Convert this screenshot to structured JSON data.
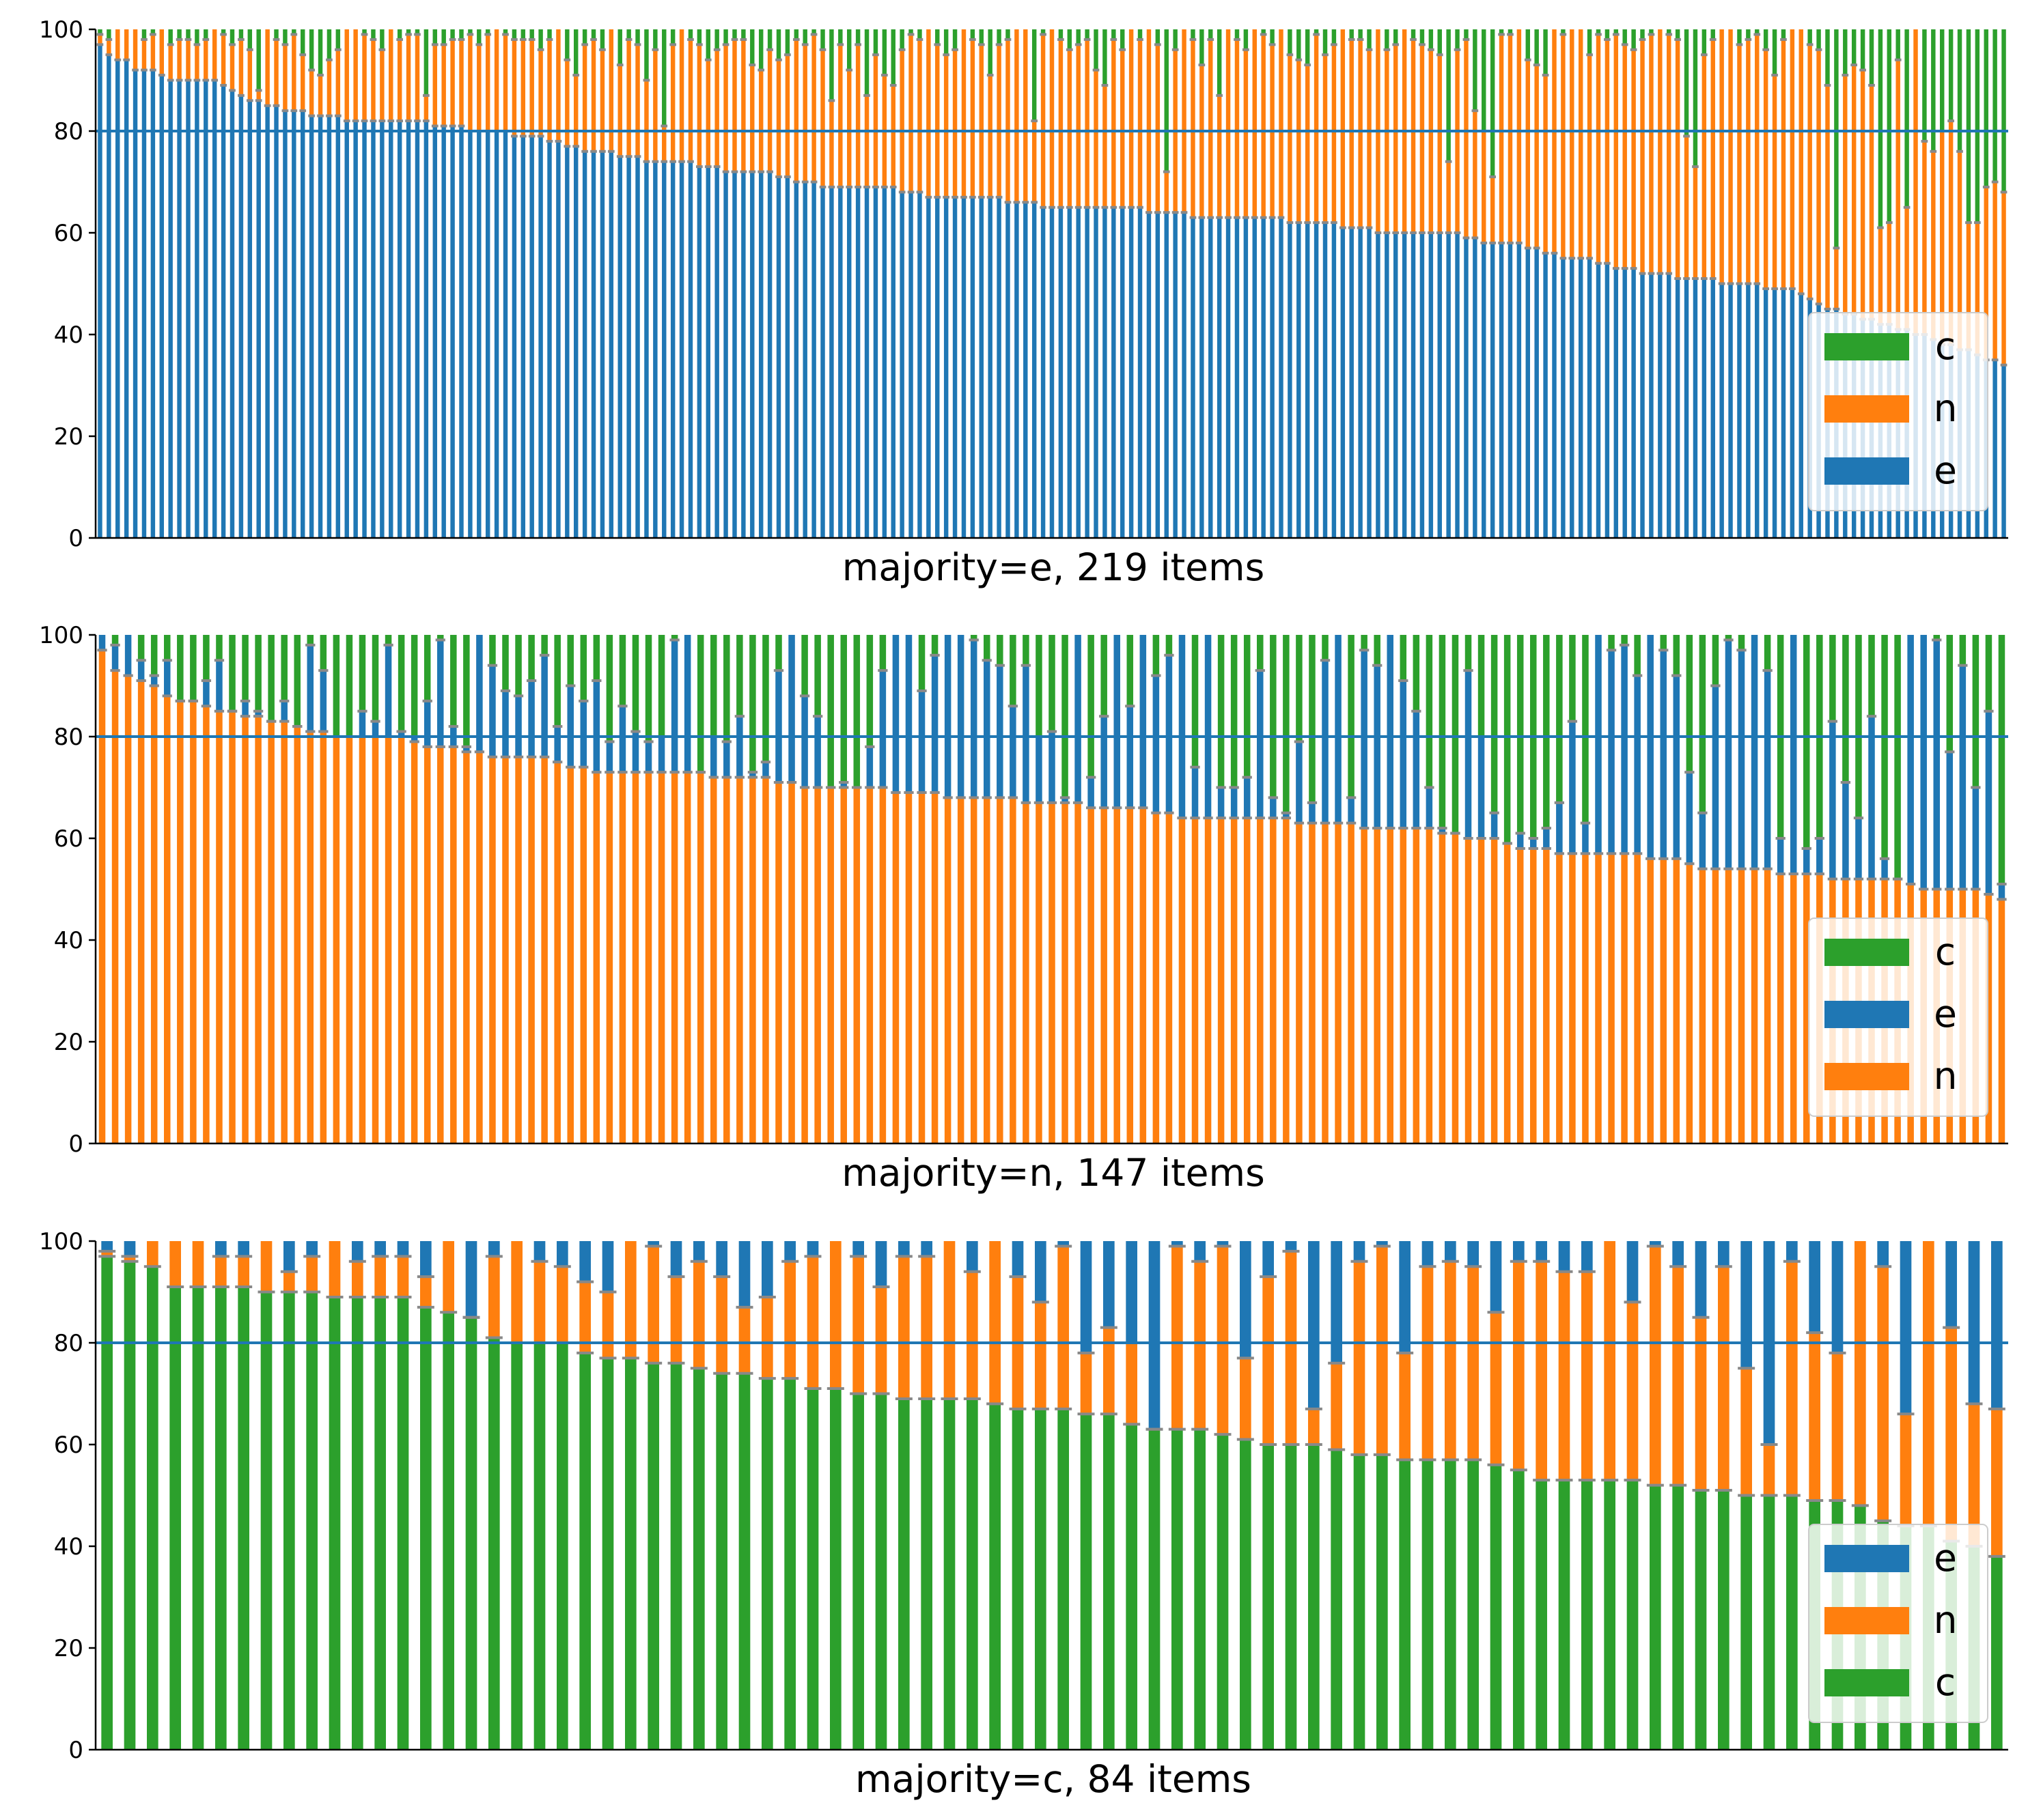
{
  "colors": {
    "e": "#1f77b4",
    "n": "#ff7f0e",
    "c": "#2ca02c",
    "ref": "#1f77b4",
    "tick": "#888888",
    "axis": "#000000"
  },
  "chart_data": [
    {
      "type": "bar",
      "stacked": true,
      "title": "majority=e, 219 items",
      "ylim": [
        0,
        100
      ],
      "yticks": [
        0,
        20,
        40,
        60,
        80,
        100
      ],
      "reference_line": 80,
      "legend_position": "lower right",
      "legend": [
        "c",
        "n",
        "e"
      ],
      "stack_order": [
        "e",
        "n",
        "c"
      ],
      "n_items": 219,
      "series_labels": {
        "e": "e",
        "n": "n",
        "c": "c"
      },
      "first": [
        97,
        95,
        94,
        94,
        92,
        92,
        92,
        91,
        90,
        90,
        90,
        90,
        90,
        90,
        89,
        88,
        87,
        86,
        86,
        85,
        85,
        84,
        84,
        84,
        83,
        83,
        83,
        83,
        82,
        82,
        82,
        82,
        82,
        82,
        82,
        82,
        82,
        82,
        81,
        81,
        81,
        81,
        80,
        80,
        80,
        80,
        80,
        79,
        79,
        79,
        79,
        78,
        78,
        77,
        77,
        76,
        76,
        76,
        76,
        75,
        75,
        75,
        74,
        74,
        74,
        74,
        74,
        74,
        73,
        73,
        73,
        72,
        72,
        72,
        72,
        72,
        72,
        71,
        71,
        70,
        70,
        70,
        69,
        69,
        69,
        69,
        69,
        69,
        69,
        69,
        69,
        68,
        68,
        68,
        67,
        67,
        67,
        67,
        67,
        67,
        67,
        67,
        67,
        66,
        66,
        66,
        66,
        65,
        65,
        65,
        65,
        65,
        65,
        65,
        65,
        65,
        65,
        65,
        65,
        64,
        64,
        64,
        64,
        64,
        63,
        63,
        63,
        63,
        63,
        63,
        63,
        63,
        63,
        63,
        63,
        62,
        62,
        62,
        62,
        62,
        62,
        61,
        61,
        61,
        61,
        60,
        60,
        60,
        60,
        60,
        60,
        60,
        60,
        60,
        60,
        59,
        59,
        58,
        58,
        58,
        58,
        58,
        57,
        57,
        56,
        56,
        55,
        55,
        55,
        55,
        54,
        54,
        53,
        53,
        53,
        52,
        52,
        52,
        52,
        51,
        51,
        51,
        51,
        51,
        50,
        50,
        50,
        50,
        50,
        49,
        49,
        49,
        49,
        48,
        47,
        46,
        45,
        45,
        44,
        44,
        43,
        43,
        42,
        42,
        41,
        41,
        40,
        40,
        39,
        38,
        38,
        37,
        37,
        36,
        35,
        35,
        34
      ],
      "second_top": [
        99,
        98,
        100,
        100,
        100,
        98,
        99,
        100,
        97,
        98,
        98,
        97,
        98,
        100,
        99,
        97,
        98,
        96,
        88,
        100,
        98,
        97,
        99,
        95,
        92,
        91,
        94,
        96,
        100,
        100,
        99,
        98,
        96,
        100,
        98,
        99,
        99,
        87,
        97,
        97,
        98,
        98,
        99,
        97,
        99,
        100,
        99,
        98,
        98,
        98,
        96,
        98,
        100,
        94,
        91,
        97,
        98,
        96,
        100,
        93,
        98,
        97,
        90,
        96,
        81,
        97,
        100,
        98,
        97,
        94,
        96,
        97,
        98,
        98,
        93,
        92,
        96,
        94,
        95,
        98,
        97,
        99,
        96,
        86,
        97,
        92,
        97,
        87,
        95,
        91,
        89,
        96,
        99,
        98,
        100,
        97,
        95,
        96,
        100,
        98,
        97,
        91,
        97,
        98,
        100,
        100,
        82,
        99,
        100,
        98,
        96,
        97,
        98,
        92,
        89,
        98,
        96,
        100,
        98,
        100,
        97,
        72,
        96,
        100,
        98,
        93,
        98,
        87,
        100,
        98,
        96,
        100,
        99,
        97,
        100,
        95,
        94,
        93,
        99,
        95,
        97,
        100,
        98,
        98,
        96,
        100,
        96,
        97,
        100,
        98,
        97,
        96,
        95,
        74,
        96,
        98,
        84,
        80,
        71,
        99,
        99,
        100,
        94,
        93,
        91,
        100,
        99,
        100,
        100,
        95,
        99,
        98,
        99,
        97,
        96,
        98,
        99,
        100,
        99,
        98,
        79,
        73,
        95,
        98,
        100,
        100,
        97,
        98,
        99,
        96,
        91,
        98,
        100,
        100,
        97,
        96,
        89,
        57,
        91,
        93,
        92,
        89,
        61,
        62,
        94,
        65,
        100,
        78,
        76,
        80,
        82,
        76,
        62,
        62,
        69,
        70,
        68,
        66
      ],
      "bar_color_order_bottom_to_top": [
        "e",
        "n",
        "c"
      ]
    },
    {
      "type": "bar",
      "stacked": true,
      "title": "majority=n, 147 items",
      "ylim": [
        0,
        100
      ],
      "yticks": [
        0,
        20,
        40,
        60,
        80,
        100
      ],
      "reference_line": 80,
      "legend_position": "lower right",
      "legend": [
        "c",
        "e",
        "n"
      ],
      "stack_order": [
        "n",
        "e",
        "c"
      ],
      "n_items": 147,
      "series_labels": {
        "e": "e",
        "n": "n",
        "c": "c"
      },
      "first": [
        97,
        93,
        92,
        91,
        90,
        88,
        87,
        87,
        86,
        85,
        85,
        84,
        84,
        83,
        83,
        82,
        81,
        81,
        80,
        80,
        80,
        80,
        80,
        80,
        79,
        78,
        78,
        78,
        77,
        77,
        76,
        76,
        76,
        76,
        76,
        75,
        74,
        74,
        73,
        73,
        73,
        73,
        73,
        73,
        73,
        73,
        73,
        72,
        72,
        72,
        72,
        72,
        71,
        71,
        70,
        70,
        70,
        70,
        70,
        70,
        70,
        69,
        69,
        69,
        69,
        68,
        68,
        68,
        68,
        68,
        68,
        67,
        67,
        67,
        67,
        67,
        66,
        66,
        66,
        66,
        66,
        65,
        65,
        64,
        64,
        64,
        64,
        64,
        64,
        64,
        64,
        64,
        63,
        63,
        63,
        63,
        63,
        62,
        62,
        62,
        62,
        62,
        62,
        61,
        61,
        60,
        60,
        60,
        59,
        58,
        58,
        58,
        57,
        57,
        57,
        57,
        57,
        57,
        57,
        56,
        56,
        56,
        55,
        54,
        54,
        54,
        54,
        54,
        54,
        53,
        53,
        53,
        53,
        52,
        52,
        52,
        52,
        52,
        52,
        51,
        50,
        50,
        50,
        50,
        50,
        49,
        48
      ],
      "second_top": [
        100,
        98,
        100,
        95,
        92,
        95,
        87,
        86,
        91,
        95,
        84,
        87,
        85,
        82,
        87,
        80,
        98,
        93,
        80,
        80,
        85,
        83,
        98,
        81,
        80,
        87,
        99,
        82,
        78,
        100,
        94,
        89,
        88,
        91,
        96,
        82,
        90,
        87,
        91,
        79,
        86,
        81,
        79,
        80,
        99,
        100,
        73,
        80,
        79,
        84,
        73,
        75,
        93,
        100,
        88,
        84,
        70,
        71,
        70,
        78,
        93,
        100,
        100,
        89,
        96,
        100,
        100,
        99,
        95,
        94,
        86,
        94,
        80,
        81,
        68,
        100,
        72,
        84,
        100,
        86,
        100,
        92,
        96,
        100,
        74,
        100,
        70,
        70,
        72,
        93,
        68,
        65,
        79,
        67,
        95,
        100,
        68,
        97,
        94,
        100,
        91,
        85,
        70,
        62,
        61,
        93,
        80,
        65,
        59,
        61,
        60,
        62,
        67,
        83,
        63,
        100,
        97,
        98,
        92,
        100,
        97,
        92,
        73,
        65,
        90,
        99,
        97,
        100,
        93,
        60,
        100,
        58,
        60,
        83,
        71,
        64,
        84,
        56,
        51,
        100,
        100,
        99,
        77,
        94,
        70,
        85,
        51
      ],
      "bar_color_order_bottom_to_top": [
        "n",
        "e",
        "c"
      ]
    },
    {
      "type": "bar",
      "stacked": true,
      "title": "majority=c, 84 items",
      "ylim": [
        0,
        100
      ],
      "yticks": [
        0,
        20,
        40,
        60,
        80,
        100
      ],
      "reference_line": 80,
      "legend_position": "lower right",
      "legend": [
        "e",
        "n",
        "c"
      ],
      "stack_order": [
        "c",
        "n",
        "e"
      ],
      "n_items": 84,
      "series_labels": {
        "e": "e",
        "n": "n",
        "c": "c"
      },
      "first": [
        97,
        96,
        95,
        91,
        91,
        91,
        91,
        90,
        90,
        90,
        89,
        89,
        89,
        89,
        87,
        86,
        85,
        81,
        80,
        80,
        80,
        78,
        77,
        77,
        76,
        76,
        75,
        74,
        74,
        73,
        73,
        71,
        71,
        70,
        70,
        69,
        69,
        69,
        69,
        68,
        67,
        67,
        67,
        66,
        66,
        64,
        63,
        63,
        63,
        62,
        61,
        60,
        60,
        60,
        59,
        58,
        58,
        57,
        57,
        57,
        57,
        56,
        55,
        53,
        53,
        53,
        53,
        53,
        52,
        52,
        51,
        51,
        50,
        50,
        50,
        49,
        49,
        48,
        45,
        44,
        44,
        41,
        40,
        38
      ],
      "second_top": [
        98,
        97,
        100,
        100,
        100,
        97,
        97,
        100,
        94,
        97,
        100,
        96,
        97,
        97,
        93,
        100,
        85,
        97,
        100,
        96,
        95,
        92,
        90,
        100,
        99,
        93,
        96,
        93,
        87,
        89,
        96,
        97,
        100,
        97,
        91,
        97,
        97,
        100,
        94,
        100,
        93,
        88,
        99,
        78,
        83,
        80,
        63,
        99,
        96,
        99,
        77,
        93,
        98,
        67,
        76,
        96,
        99,
        78,
        95,
        96,
        95,
        86,
        96,
        96,
        94,
        94,
        100,
        88,
        99,
        95,
        85,
        95,
        75,
        60,
        96,
        82,
        78,
        100,
        95,
        66,
        100,
        83,
        68,
        67
      ],
      "bar_color_order_bottom_to_top": [
        "c",
        "n",
        "e"
      ]
    }
  ]
}
